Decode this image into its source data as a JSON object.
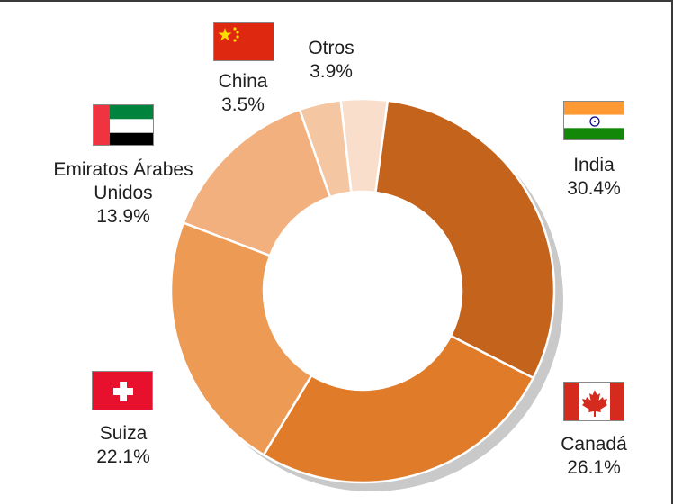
{
  "chart_data": {
    "type": "pie",
    "variant": "donut",
    "unit": "%",
    "slices": [
      {
        "label": "India",
        "value": 30.4,
        "value_label": "30.4%",
        "color": "#c4631b",
        "flag_icon": "india-flag-icon"
      },
      {
        "label": "Canadá",
        "value": 26.1,
        "value_label": "26.1%",
        "color": "#e07b2a",
        "flag_icon": "canada-flag-icon"
      },
      {
        "label": "Suiza",
        "value": 22.1,
        "value_label": "22.1%",
        "color": "#ed9a55",
        "flag_icon": "switzerland-flag-icon"
      },
      {
        "label": "Emiratos Árabes Unidos",
        "label_lines": [
          "Emiratos Árabes",
          "Unidos"
        ],
        "value": 13.9,
        "value_label": "13.9%",
        "color": "#f2b07e",
        "flag_icon": "uae-flag-icon"
      },
      {
        "label": "China",
        "value": 3.5,
        "value_label": "3.5%",
        "color": "#f5c6a2",
        "flag_icon": "china-flag-icon"
      },
      {
        "label": "Otros",
        "value": 3.9,
        "value_label": "3.9%",
        "color": "#f9dfcb",
        "flag_icon": null
      }
    ]
  }
}
